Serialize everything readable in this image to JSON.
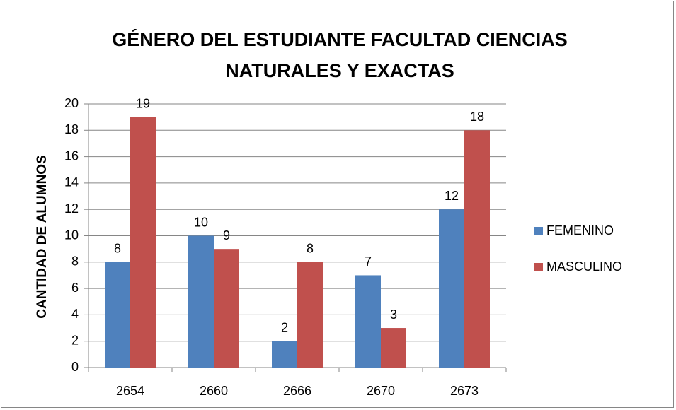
{
  "chart_data": {
    "type": "bar",
    "title": "GÉNERO DEL ESTUDIANTE FACULTAD CIENCIAS NATURALES Y EXACTAS",
    "y_label": "CANTIDAD DE ALUMNOS",
    "categories": [
      "2654",
      "2660",
      "2666",
      "2670",
      "2673"
    ],
    "series": [
      {
        "name": "FEMENINO",
        "color": "#4f81bd",
        "values": [
          8,
          10,
          2,
          7,
          12
        ]
      },
      {
        "name": "MASCULINO",
        "color": "#c0504d",
        "values": [
          19,
          9,
          8,
          3,
          18
        ]
      }
    ],
    "ylim": [
      0,
      20
    ],
    "yticks": [
      0,
      2,
      4,
      6,
      8,
      10,
      12,
      14,
      16,
      18,
      20
    ],
    "grid": true,
    "legend": "right"
  }
}
